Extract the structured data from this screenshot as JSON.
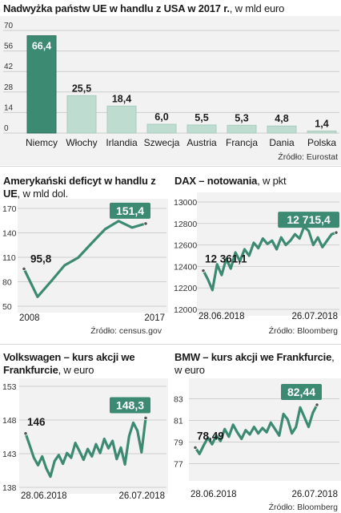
{
  "colors": {
    "accent": "#3d8a73",
    "bar_light": "#bfdcd1",
    "bar_dark": "#3d8a73",
    "panel_bg": "#f2f2f2",
    "label_text": "#ffffff"
  },
  "chart_data": [
    {
      "type": "bar",
      "title": "Nadwyżka państw UE w handlu z USA w 2017 r.",
      "unit": ", w mld euro",
      "categories": [
        "Niemcy",
        "Włochy",
        "Irlandia",
        "Szwecja",
        "Austria",
        "Francja",
        "Dania",
        "Polska"
      ],
      "values": [
        66.4,
        25.5,
        18.4,
        6.0,
        5.5,
        5.3,
        4.8,
        1.4
      ],
      "value_labels": [
        "66,4",
        "25,5",
        "18,4",
        "6,0",
        "5,5",
        "5,3",
        "4,8",
        "1,4"
      ],
      "yticks": [
        "70",
        "56",
        "42",
        "28",
        "14",
        "0"
      ],
      "ylim": [
        0,
        70
      ],
      "source": "Źródło: Eurostat"
    },
    {
      "type": "line",
      "title": "Amerykański deficyt w handlu z UE",
      "unit": ", w mld dol.",
      "x": [
        2008,
        2009,
        2010,
        2011,
        2012,
        2013,
        2014,
        2015,
        2016,
        2017
      ],
      "y": [
        95.8,
        61.5,
        80.5,
        100.2,
        109.5,
        127.2,
        144.5,
        154.5,
        146.5,
        151.4
      ],
      "xticks": [
        "2008",
        "2017"
      ],
      "yticks": [
        "170",
        "140",
        "110",
        "80",
        "50"
      ],
      "ylim": [
        50,
        170
      ],
      "start_label": "95,8",
      "end_label": "151,4",
      "source": "Źródło: census.gov"
    },
    {
      "type": "line",
      "title": "DAX – notowania",
      "unit": ", w pkt",
      "y": [
        12361.1,
        12280,
        12180,
        12420,
        12320,
        12470,
        12380,
        12530,
        12450,
        12560,
        12500,
        12620,
        12570,
        12660,
        12610,
        12640,
        12560,
        12670,
        12600,
        12640,
        12700,
        12660,
        12770,
        12730,
        12600,
        12670,
        12580,
        12640,
        12700,
        12715.4
      ],
      "xticks": [
        "28.06.2018",
        "26.07.2018"
      ],
      "yticks": [
        "13000",
        "12800",
        "12600",
        "12400",
        "12200",
        "12000"
      ],
      "ylim": [
        12000,
        13000
      ],
      "start_label": "12 361,1",
      "end_label": "12 715,4",
      "source": "Źródło: Bloomberg"
    },
    {
      "type": "line",
      "title": "Volkswagen – kurs akcji we Frankfurcie",
      "unit": ", w euro",
      "y": [
        146,
        144.2,
        142.4,
        141.3,
        142.6,
        140.8,
        139.6,
        141.9,
        142.8,
        141.5,
        143.1,
        142.4,
        144.6,
        143.4,
        142.1,
        143.7,
        142.6,
        144.4,
        143.1,
        145.2,
        143.8,
        144.9,
        142.2,
        143.9,
        141.4,
        145.6,
        147.6,
        146.4,
        143.2,
        148.3
      ],
      "xticks": [
        "28.06.2018",
        "26.07.2018"
      ],
      "yticks": [
        "153",
        "148",
        "143",
        "138"
      ],
      "ylim": [
        138,
        153
      ],
      "start_label": "146",
      "end_label": "148,3",
      "source": ""
    },
    {
      "type": "line",
      "title": "BMW – kurs akcji we Frankfurcie",
      "unit": ", w euro",
      "y": [
        78.49,
        77.9,
        78.7,
        79.4,
        78.8,
        79.6,
        79.1,
        80.2,
        79.5,
        80.6,
        79.9,
        79.3,
        80.1,
        79.7,
        80.4,
        79.8,
        80.3,
        79.9,
        80.8,
        80.2,
        79.6,
        81.6,
        81.1,
        79.8,
        80.4,
        82.2,
        81.3,
        80.4,
        81.7,
        82.44
      ],
      "xticks": [
        "28.06.2018",
        "26.07.2018"
      ],
      "yticks": [
        "83",
        "81",
        "79",
        "77"
      ],
      "ylim": [
        76,
        84
      ],
      "start_label": "78,49",
      "end_label": "82,44",
      "source": "Źródło: Bloomberg"
    }
  ]
}
